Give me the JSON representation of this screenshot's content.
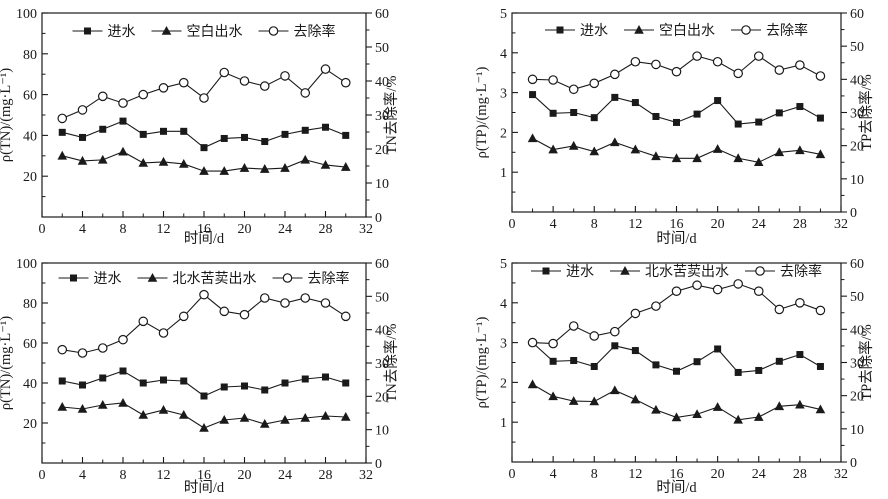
{
  "page": {
    "background": "#ffffff",
    "ink": "#1a1a1a"
  },
  "chart_data": [
    {
      "id": "tn-blank",
      "type": "line",
      "xlabel": "时间/d",
      "x": [
        2,
        4,
        6,
        8,
        10,
        12,
        14,
        16,
        18,
        20,
        22,
        24,
        26,
        28,
        30
      ],
      "xlim": [
        0,
        32
      ],
      "xticks": [
        0,
        4,
        8,
        12,
        16,
        20,
        24,
        28,
        32
      ],
      "xminor": [
        2,
        6,
        10,
        14,
        18,
        22,
        26,
        30
      ],
      "left_axis": {
        "label": "ρ(TN)/(mg·L⁻¹)",
        "lim": [
          0,
          100
        ],
        "ticks": [
          20,
          40,
          60,
          80,
          100
        ],
        "minor": [
          10,
          30,
          50,
          70,
          90
        ]
      },
      "right_axis": {
        "label": "TN去除率/%",
        "lim": [
          0,
          60
        ],
        "ticks": [
          0,
          10,
          20,
          30,
          40,
          50,
          60
        ],
        "minor": [
          5,
          15,
          25,
          35,
          45,
          55
        ]
      },
      "legend_position": "top-center",
      "grid": false,
      "series": [
        {
          "name": "进水",
          "slug": "influent",
          "axis": "left",
          "marker": "filled-square",
          "values": [
            41.5,
            39,
            43,
            47,
            40.5,
            42,
            42,
            34,
            38.5,
            39,
            37,
            40.5,
            42.5,
            44,
            40
          ]
        },
        {
          "name": "空白出水",
          "slug": "blank-effluent",
          "axis": "left",
          "marker": "filled-triangle",
          "values": [
            30,
            27.5,
            28,
            32,
            26.5,
            27,
            26,
            22.5,
            22.5,
            24,
            23.5,
            24,
            28,
            25.5,
            24.5
          ]
        },
        {
          "name": "去除率",
          "slug": "removal-rate",
          "axis": "right",
          "marker": "open-circle",
          "values": [
            29,
            31.5,
            35.5,
            33.5,
            36,
            38,
            39.5,
            35,
            42.5,
            40,
            38.5,
            41.5,
            36.5,
            43.5,
            39.5
          ]
        }
      ]
    },
    {
      "id": "tp-blank",
      "type": "line",
      "xlabel": "时间/d",
      "x": [
        2,
        4,
        6,
        8,
        10,
        12,
        14,
        16,
        18,
        20,
        22,
        24,
        26,
        28,
        30
      ],
      "xlim": [
        0,
        32
      ],
      "xticks": [
        0,
        4,
        8,
        12,
        16,
        20,
        24,
        28,
        32
      ],
      "xminor": [
        2,
        6,
        10,
        14,
        18,
        22,
        26,
        30
      ],
      "left_axis": {
        "label": "ρ(TP)/(mg·L⁻¹)",
        "lim": [
          0,
          5
        ],
        "ticks": [
          1,
          2,
          3,
          4,
          5
        ],
        "minor": [
          0.5,
          1.5,
          2.5,
          3.5,
          4.5
        ]
      },
      "right_axis": {
        "label": "TP去除率/%",
        "lim": [
          0,
          60
        ],
        "ticks": [
          0,
          10,
          20,
          30,
          40,
          50,
          60
        ],
        "minor": [
          5,
          15,
          25,
          35,
          45,
          55
        ]
      },
      "legend_position": "top-center",
      "grid": false,
      "series": [
        {
          "name": "进水",
          "slug": "influent",
          "axis": "left",
          "marker": "filled-square",
          "values": [
            2.95,
            2.48,
            2.5,
            2.37,
            2.88,
            2.75,
            2.4,
            2.25,
            2.46,
            2.8,
            2.21,
            2.26,
            2.49,
            2.65,
            2.36
          ]
        },
        {
          "name": "空白出水",
          "slug": "blank-effluent",
          "axis": "left",
          "marker": "filled-triangle",
          "values": [
            1.85,
            1.57,
            1.66,
            1.52,
            1.75,
            1.57,
            1.4,
            1.35,
            1.35,
            1.58,
            1.35,
            1.25,
            1.5,
            1.55,
            1.45
          ]
        },
        {
          "name": "去除率",
          "slug": "removal-rate",
          "axis": "right",
          "marker": "open-circle",
          "values": [
            40,
            39.8,
            37,
            38.8,
            41.5,
            45.3,
            44.5,
            42.3,
            47,
            45.3,
            41.8,
            47,
            42.8,
            44.3,
            41
          ]
        }
      ]
    },
    {
      "id": "tn-veronica",
      "type": "line",
      "xlabel": "时间/d",
      "x": [
        2,
        4,
        6,
        8,
        10,
        12,
        14,
        16,
        18,
        20,
        22,
        24,
        26,
        28,
        30
      ],
      "xlim": [
        0,
        32
      ],
      "xticks": [
        0,
        4,
        8,
        12,
        16,
        20,
        24,
        28,
        32
      ],
      "xminor": [
        2,
        6,
        10,
        14,
        18,
        22,
        26,
        30
      ],
      "left_axis": {
        "label": "ρ(TN)/(mg·L⁻¹)",
        "lim": [
          0,
          100
        ],
        "ticks": [
          20,
          40,
          60,
          80,
          100
        ],
        "minor": [
          10,
          30,
          50,
          70,
          90
        ]
      },
      "right_axis": {
        "label": "TN去除率/%",
        "lim": [
          0,
          60
        ],
        "ticks": [
          0,
          10,
          20,
          30,
          40,
          50,
          60
        ],
        "minor": [
          5,
          15,
          25,
          35,
          45,
          55
        ]
      },
      "legend_position": "top-center",
      "grid": false,
      "series": [
        {
          "name": "进水",
          "slug": "influent",
          "axis": "left",
          "marker": "filled-square",
          "values": [
            41,
            39,
            42.5,
            46,
            40,
            41.5,
            41,
            33.5,
            38,
            38.5,
            36.5,
            40,
            42,
            43,
            40
          ]
        },
        {
          "name": "北水苦荬出水",
          "slug": "veronica-effluent",
          "axis": "left",
          "marker": "filled-triangle",
          "values": [
            28,
            27,
            29,
            30,
            24,
            26.5,
            24,
            17.5,
            21.5,
            22.5,
            19.5,
            21.5,
            22.5,
            23.5,
            23
          ]
        },
        {
          "name": "去除率",
          "slug": "removal-rate",
          "axis": "right",
          "marker": "open-circle",
          "values": [
            34,
            33,
            34.5,
            37,
            42.5,
            39,
            44,
            50.5,
            45.5,
            44.5,
            49.5,
            48,
            49.5,
            48,
            44
          ]
        }
      ]
    },
    {
      "id": "tp-veronica",
      "type": "line",
      "xlabel": "时间/d",
      "x": [
        2,
        4,
        6,
        8,
        10,
        12,
        14,
        16,
        18,
        20,
        22,
        24,
        26,
        28,
        30
      ],
      "xlim": [
        0,
        32
      ],
      "xticks": [
        0,
        4,
        8,
        12,
        16,
        20,
        24,
        28,
        32
      ],
      "xminor": [
        2,
        6,
        10,
        14,
        18,
        22,
        26,
        30
      ],
      "left_axis": {
        "label": "ρ(TP)/(mg·L⁻¹)",
        "lim": [
          0,
          5
        ],
        "ticks": [
          1,
          2,
          3,
          4,
          5
        ],
        "minor": [
          0.5,
          1.5,
          2.5,
          3.5,
          4.5
        ]
      },
      "right_axis": {
        "label": "TP去除率/%",
        "lim": [
          0,
          60
        ],
        "ticks": [
          0,
          10,
          20,
          30,
          40,
          50,
          60
        ],
        "minor": [
          5,
          15,
          25,
          35,
          45,
          55
        ]
      },
      "legend_position": "top-center",
      "grid": false,
      "series": [
        {
          "name": "进水",
          "slug": "influent",
          "axis": "left",
          "marker": "filled-square",
          "values": [
            3.0,
            2.53,
            2.55,
            2.4,
            2.92,
            2.8,
            2.44,
            2.28,
            2.52,
            2.84,
            2.25,
            2.3,
            2.53,
            2.7,
            2.4
          ]
        },
        {
          "name": "北水苦荬出水",
          "slug": "veronica-effluent",
          "axis": "left",
          "marker": "filled-triangle",
          "values": [
            1.95,
            1.65,
            1.53,
            1.52,
            1.8,
            1.57,
            1.31,
            1.12,
            1.2,
            1.38,
            1.06,
            1.13,
            1.4,
            1.44,
            1.32
          ]
        },
        {
          "name": "去除率",
          "slug": "removal-rate",
          "axis": "right",
          "marker": "open-circle",
          "values": [
            36,
            35.7,
            41,
            38,
            39.3,
            44.8,
            47,
            51.5,
            53.3,
            52,
            53.7,
            51.5,
            46,
            48,
            45.7
          ]
        }
      ]
    }
  ]
}
